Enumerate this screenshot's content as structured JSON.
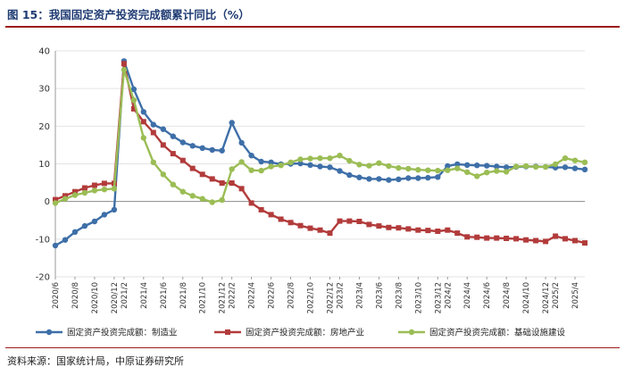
{
  "header": {
    "title": "图 15：我国固定资产投资完成额累计同比（%）"
  },
  "footer": {
    "source": "资料来源：国家统计局，中原证券研究所"
  },
  "chart_data": {
    "type": "line",
    "title": "图 15：我国固定资产投资完成额累计同比（%）",
    "ylim": [
      -20,
      40
    ],
    "yticks": [
      -20,
      -10,
      0,
      10,
      20,
      30,
      40
    ],
    "grid": true,
    "legend_position": "bottom",
    "x": [
      "2020/6",
      "2020/7",
      "2020/8",
      "2020/9",
      "2020/10",
      "2020/11",
      "2020/12",
      "2021/2",
      "2021/3",
      "2021/4",
      "2021/5",
      "2021/6",
      "2021/7",
      "2021/8",
      "2021/9",
      "2021/10",
      "2021/11",
      "2021/12",
      "2022/2",
      "2022/3",
      "2022/4",
      "2022/5",
      "2022/6",
      "2022/7",
      "2022/8",
      "2022/9",
      "2022/10",
      "2022/11",
      "2022/12",
      "2023/2",
      "2023/3",
      "2023/4",
      "2023/5",
      "2023/6",
      "2023/7",
      "2023/8",
      "2023/9",
      "2023/10",
      "2023/11",
      "2023/12",
      "2024/2",
      "2024/3",
      "2024/4",
      "2024/5",
      "2024/6",
      "2024/7",
      "2024/8",
      "2024/9",
      "2024/10",
      "2024/11",
      "2024/12",
      "2025/2",
      "2025/3",
      "2025/4",
      "2025/5"
    ],
    "xtick_labels": [
      "2020/6",
      "2020/8",
      "2020/10",
      "2020/12",
      "2021/2",
      "2021/4",
      "2021/6",
      "2021/8",
      "2021/10",
      "2021/12",
      "2022/2",
      "2022/4",
      "2022/6",
      "2022/8",
      "2022/10",
      "2022/12",
      "2023/2",
      "2023/4",
      "2023/6",
      "2023/8",
      "2023/10",
      "2023/12",
      "2024/2",
      "2024/4",
      "2024/6",
      "2024/8",
      "2024/10",
      "2024/12",
      "2025/2",
      "2025/4"
    ],
    "series": [
      {
        "name": "固定资产投资完成额：制造业",
        "color": "#3e6fa8",
        "values": [
          -11.7,
          -10.2,
          -8.1,
          -6.5,
          -5.3,
          -3.5,
          -2.2,
          37.3,
          29.8,
          23.8,
          20.4,
          19.2,
          17.3,
          15.7,
          14.8,
          14.2,
          13.7,
          13.5,
          20.9,
          15.6,
          12.2,
          10.6,
          10.4,
          9.9,
          10.0,
          10.1,
          9.7,
          9.3,
          9.1,
          8.1,
          7.0,
          6.4,
          6.0,
          6.0,
          5.7,
          5.9,
          6.2,
          6.2,
          6.3,
          6.5,
          9.4,
          9.9,
          9.7,
          9.6,
          9.5,
          9.3,
          9.1,
          9.2,
          9.3,
          9.3,
          9.2,
          9.0,
          9.1,
          8.8,
          8.5
        ]
      },
      {
        "name": "固定资产投资完成额：房地产业",
        "color": "#b23b3b",
        "values": [
          0.5,
          1.5,
          2.6,
          3.6,
          4.3,
          4.8,
          4.8,
          36.6,
          24.6,
          21.2,
          18.3,
          15.0,
          12.7,
          10.9,
          8.8,
          7.2,
          6.0,
          4.9,
          4.9,
          3.4,
          -0.4,
          -2.2,
          -3.5,
          -4.7,
          -5.6,
          -6.4,
          -7.1,
          -7.6,
          -8.4,
          -5.2,
          -5.2,
          -5.3,
          -6.1,
          -6.5,
          -6.9,
          -7.0,
          -7.3,
          -7.6,
          -7.7,
          -7.9,
          -7.6,
          -8.4,
          -9.4,
          -9.5,
          -9.7,
          -9.7,
          -9.8,
          -9.9,
          -10.2,
          -10.4,
          -10.6,
          -9.2,
          -9.9,
          -10.4,
          -11.0
        ]
      },
      {
        "name": "固定资产投资完成额：基础设施建设",
        "color": "#9bbd55",
        "values": [
          -0.4,
          0.7,
          1.7,
          2.3,
          2.9,
          3.2,
          3.4,
          35.0,
          26.9,
          16.9,
          10.4,
          7.2,
          4.5,
          2.6,
          1.5,
          0.7,
          -0.2,
          0.4,
          8.6,
          10.5,
          8.3,
          8.2,
          9.3,
          9.6,
          10.4,
          11.2,
          11.4,
          11.5,
          11.5,
          12.2,
          10.8,
          9.8,
          9.5,
          10.2,
          9.4,
          8.9,
          8.7,
          8.4,
          8.3,
          8.2,
          8.3,
          8.8,
          7.8,
          6.7,
          7.7,
          8.1,
          7.9,
          9.3,
          9.4,
          9.2,
          9.2,
          9.9,
          11.5,
          10.9,
          10.4
        ]
      }
    ]
  }
}
